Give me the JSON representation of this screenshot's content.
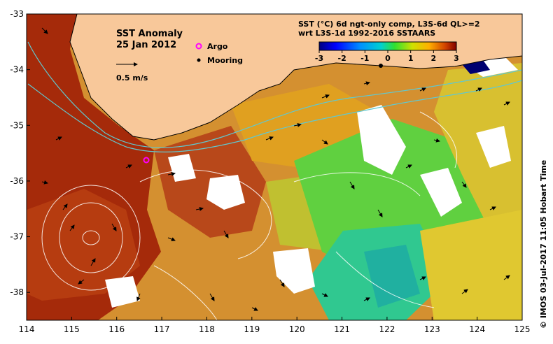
{
  "map": {
    "title": "SST Anomaly",
    "date": "25 Jan 2012",
    "scale_label": "0.5 m/s",
    "legend": {
      "argo": "Argo",
      "mooring": "Mooring"
    },
    "product_line1": "SST (°C) 6d ngt-only comp, L3S-6d QL>=2",
    "product_line2": "wrt L3S-1d 1992-2016 SSTAARS",
    "credit": "© IMOS 03-Jul-2017 11:05 Hobart Time",
    "lon_ticks": [
      "114",
      "115",
      "116",
      "117",
      "118",
      "119",
      "120",
      "121",
      "122",
      "123",
      "124",
      "125"
    ],
    "lat_ticks": [
      "-33",
      "-34",
      "-35",
      "-36",
      "-37",
      "-38"
    ],
    "lon_range": [
      114,
      125
    ],
    "lat_range": [
      -38.5,
      -33
    ],
    "colorbar": {
      "ticks": [
        "-3",
        "-2",
        "-1",
        "0",
        "1",
        "2",
        "3"
      ],
      "range": [
        -3,
        3
      ],
      "colors": [
        "#000080",
        "#0000ff",
        "#0090ff",
        "#00d0d0",
        "#30e030",
        "#d0e000",
        "#ffb000",
        "#d04000",
        "#800000"
      ]
    },
    "land_color": "#f8c89a",
    "argo_position": [
      116.7,
      -35.63
    ],
    "mooring_position": [
      121.85,
      -33.93
    ]
  }
}
